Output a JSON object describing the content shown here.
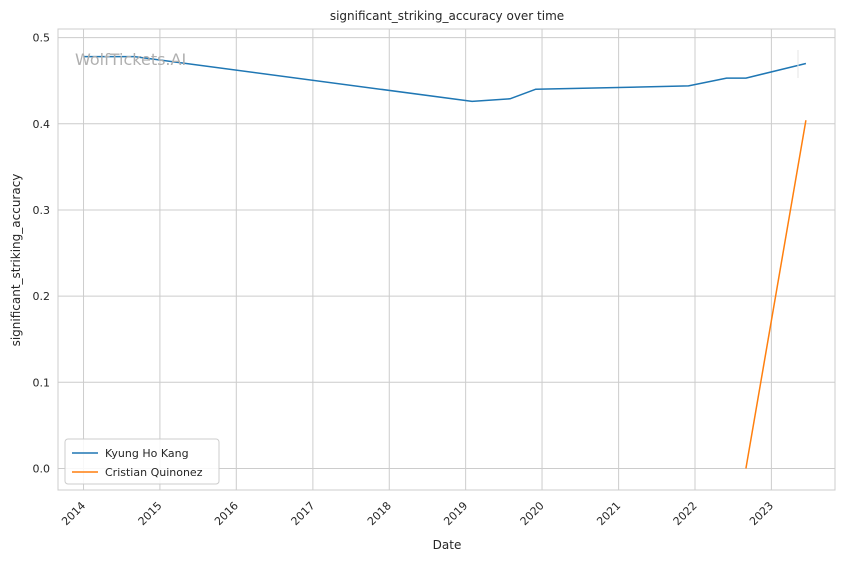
{
  "watermark": "WolfTickets.AI",
  "chart_data": {
    "type": "line",
    "title": "significant_striking_accuracy over time",
    "xlabel": "Date",
    "ylabel": "significant_striking_accuracy",
    "x_ticks": [
      "2014",
      "2015",
      "2016",
      "2017",
      "2018",
      "2019",
      "2020",
      "2021",
      "2022",
      "2023"
    ],
    "y_ticks": [
      "0.0",
      "0.1",
      "0.2",
      "0.3",
      "0.4",
      "0.5"
    ],
    "xlim": [
      "2013-09-01",
      "2023-11-01"
    ],
    "ylim": [
      -0.025,
      0.51
    ],
    "grid": true,
    "legend_position": "lower-left",
    "series": [
      {
        "name": "Kyung Ho Kang",
        "color": "#1f77b4",
        "points": [
          {
            "x": "2014-01-01",
            "y": 0.478
          },
          {
            "x": "2014-09-01",
            "y": 0.478
          },
          {
            "x": "2019-02-01",
            "y": 0.426
          },
          {
            "x": "2019-08-01",
            "y": 0.429
          },
          {
            "x": "2019-12-01",
            "y": 0.44
          },
          {
            "x": "2021-12-01",
            "y": 0.444
          },
          {
            "x": "2022-06-01",
            "y": 0.453
          },
          {
            "x": "2022-09-01",
            "y": 0.453
          },
          {
            "x": "2023-06-15",
            "y": 0.47
          }
        ]
      },
      {
        "name": "Cristian Quinonez",
        "color": "#ff7f0e",
        "points": [
          {
            "x": "2022-09-01",
            "y": 0.0
          },
          {
            "x": "2023-06-15",
            "y": 0.404
          }
        ]
      }
    ]
  }
}
